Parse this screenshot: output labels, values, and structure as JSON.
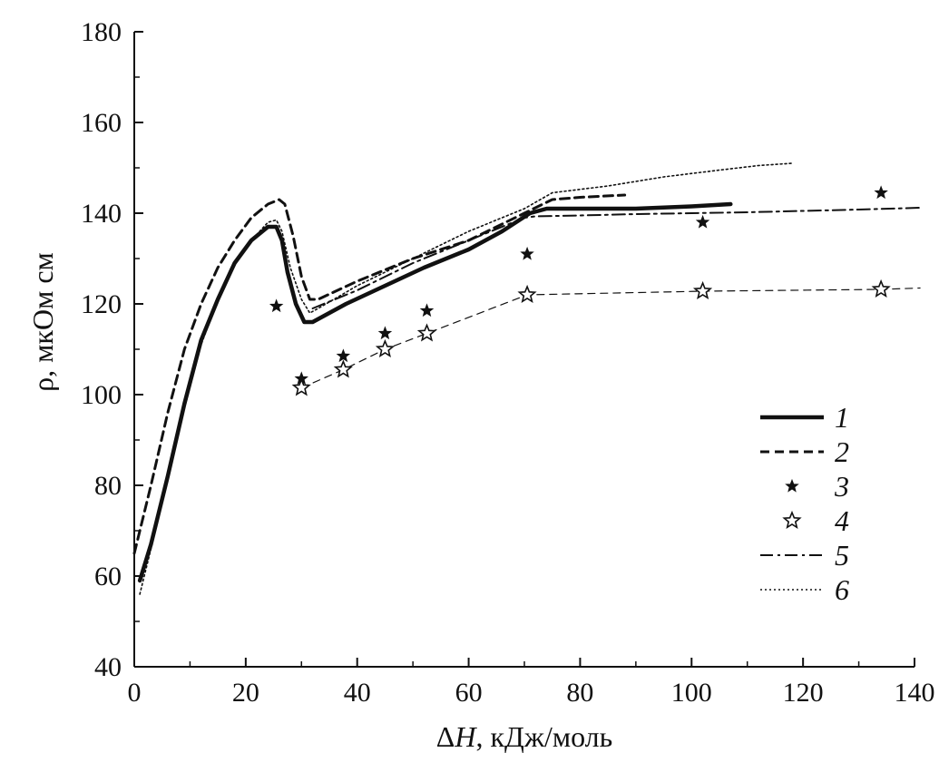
{
  "chart_data": {
    "type": "line",
    "xlabel_prefix": "Δ",
    "xlabel_var": "H",
    "xlabel_suffix": ", кДж/моль",
    "ylabel": "ρ, мкОм см",
    "xlim": [
      0,
      140
    ],
    "ylim": [
      40,
      180
    ],
    "x_ticks": [
      "0",
      "20",
      "40",
      "60",
      "80",
      "100",
      "120",
      "140"
    ],
    "y_ticks": [
      "40",
      "60",
      "80",
      "100",
      "120",
      "140",
      "160",
      "180"
    ],
    "legend_position": "right",
    "series": [
      {
        "name": "1",
        "style": "solid",
        "points": [
          [
            1,
            59
          ],
          [
            3,
            67
          ],
          [
            6,
            82
          ],
          [
            9,
            98
          ],
          [
            12,
            112
          ],
          [
            15,
            121
          ],
          [
            18,
            129
          ],
          [
            21,
            134
          ],
          [
            24,
            137
          ],
          [
            25.5,
            137
          ],
          [
            26.5,
            134
          ],
          [
            27.5,
            127
          ],
          [
            29,
            120
          ],
          [
            30.5,
            116
          ],
          [
            32,
            116
          ],
          [
            38,
            120
          ],
          [
            45,
            124
          ],
          [
            52,
            128
          ],
          [
            60,
            132
          ],
          [
            66,
            136
          ],
          [
            71,
            140
          ],
          [
            74,
            141
          ],
          [
            80,
            141
          ],
          [
            90,
            141
          ],
          [
            100,
            141.5
          ],
          [
            107,
            142
          ]
        ]
      },
      {
        "name": "2",
        "style": "dashed",
        "points": [
          [
            0,
            65
          ],
          [
            3,
            80
          ],
          [
            6,
            96
          ],
          [
            9,
            110
          ],
          [
            12,
            120
          ],
          [
            15,
            128
          ],
          [
            18,
            134
          ],
          [
            21,
            139
          ],
          [
            24,
            142
          ],
          [
            26,
            143
          ],
          [
            27,
            142
          ],
          [
            28.5,
            135
          ],
          [
            30,
            126
          ],
          [
            31.5,
            121
          ],
          [
            33,
            121
          ],
          [
            40,
            125
          ],
          [
            50,
            130
          ],
          [
            60,
            134
          ],
          [
            70,
            140
          ],
          [
            75,
            143
          ],
          [
            80,
            143.5
          ],
          [
            88,
            144
          ]
        ]
      },
      {
        "name": "3",
        "style": "marker-filled-star",
        "points": [
          [
            25.5,
            119.5
          ],
          [
            30,
            103.5
          ],
          [
            37.5,
            108.5
          ],
          [
            45,
            113.5
          ],
          [
            52.5,
            118.5
          ],
          [
            70.5,
            131
          ],
          [
            102,
            138
          ],
          [
            134,
            144.5
          ]
        ]
      },
      {
        "name": "4",
        "style": "marker-open-star-dashed",
        "points": [
          [
            30,
            101.5
          ],
          [
            37.5,
            105.5
          ],
          [
            45,
            110
          ],
          [
            52.5,
            113.5
          ],
          [
            70.5,
            122
          ],
          [
            102,
            122.8
          ],
          [
            134,
            123.2
          ],
          [
            141,
            123.5
          ]
        ]
      },
      {
        "name": "5",
        "style": "dashdot",
        "points": [
          [
            32,
            119
          ],
          [
            40,
            123
          ],
          [
            50,
            129
          ],
          [
            60,
            134
          ],
          [
            70,
            139
          ],
          [
            72,
            139.3
          ],
          [
            80,
            139.5
          ],
          [
            90,
            139.8
          ],
          [
            100,
            140
          ],
          [
            110,
            140.2
          ],
          [
            120,
            140.5
          ],
          [
            130,
            140.8
          ],
          [
            141,
            141.2
          ]
        ]
      },
      {
        "name": "6",
        "style": "dotted",
        "points": [
          [
            1,
            56
          ],
          [
            3,
            66
          ],
          [
            6,
            82
          ],
          [
            9,
            97
          ],
          [
            12,
            111
          ],
          [
            15,
            121
          ],
          [
            18,
            129
          ],
          [
            21,
            134
          ],
          [
            24,
            138
          ],
          [
            25.5,
            138.5
          ],
          [
            26.5,
            136
          ],
          [
            28,
            128
          ],
          [
            30,
            121
          ],
          [
            31.5,
            118
          ],
          [
            33,
            119
          ],
          [
            40,
            124
          ],
          [
            50,
            130
          ],
          [
            60,
            136
          ],
          [
            70,
            141
          ],
          [
            75,
            144.5
          ],
          [
            85,
            146
          ],
          [
            95,
            148
          ],
          [
            105,
            149.5
          ],
          [
            112,
            150.5
          ],
          [
            118,
            151
          ]
        ]
      }
    ]
  }
}
